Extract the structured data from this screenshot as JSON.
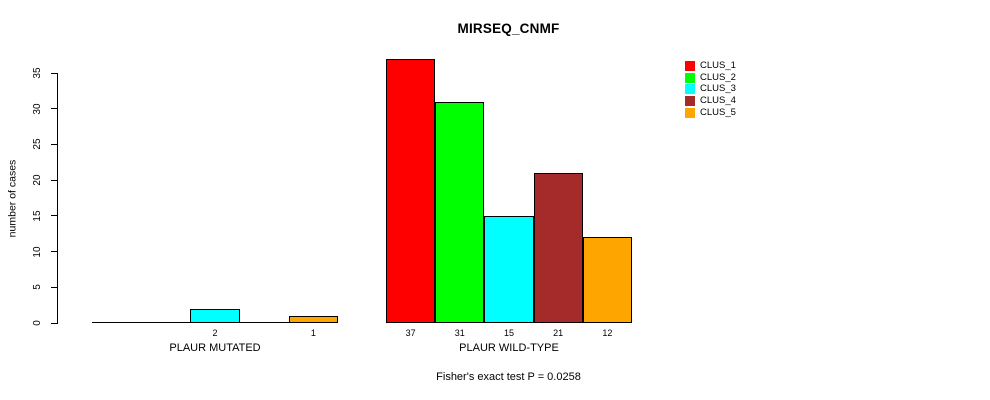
{
  "chart_data": {
    "type": "bar",
    "title": "MIRSEQ_CNMF",
    "ylabel": "number of cases",
    "ylim": [
      0,
      35
    ],
    "yticks": [
      0,
      5,
      10,
      15,
      20,
      25,
      30,
      35
    ],
    "grid": false,
    "legend_position": "top-right",
    "series_names": [
      "CLUS_1",
      "CLUS_2",
      "CLUS_3",
      "CLUS_4",
      "CLUS_5"
    ],
    "series_colors": [
      "#FF0000",
      "#00FF00",
      "#00FFFF",
      "#A52A2A",
      "#FFA500"
    ],
    "groups": [
      {
        "label": "PLAUR MUTATED",
        "values": [
          0,
          0,
          2,
          0,
          1
        ]
      },
      {
        "label": "PLAUR WILD-TYPE",
        "values": [
          37,
          31,
          15,
          21,
          12
        ]
      }
    ],
    "bar_value_labels_shown_for_nonzero_only": true,
    "footnote": "Fisher's exact test P = 0.0258"
  }
}
